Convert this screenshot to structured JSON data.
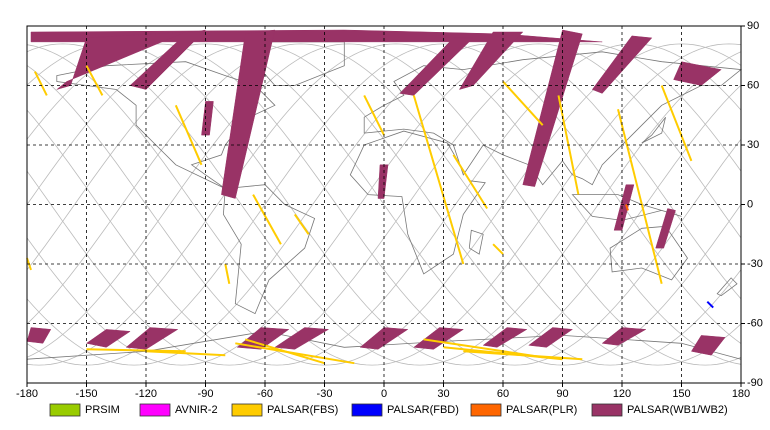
{
  "chart_data": {
    "type": "map",
    "xlim": [
      -180,
      180
    ],
    "xticks": [
      -180,
      -150,
      -120,
      -90,
      -60,
      -30,
      0,
      30,
      60,
      90,
      120,
      150,
      180
    ],
    "ylim": [
      -90,
      90
    ],
    "yticks": [
      -90,
      -60,
      -30,
      0,
      30,
      60,
      90
    ],
    "grid": true,
    "legend": [
      {
        "name": "PRSIM",
        "color": "#99cc00"
      },
      {
        "name": "AVNIR-2",
        "color": "#ff00ff"
      },
      {
        "name": "PALSAR(FBS)",
        "color": "#ffcc00"
      },
      {
        "name": "PALSAR(FBD)",
        "color": "#0000ff"
      },
      {
        "name": "PALSAR(PLR)",
        "color": "#ff6600"
      },
      {
        "name": "PALSAR(WB1/WB2)",
        "color": "#993366"
      }
    ]
  }
}
